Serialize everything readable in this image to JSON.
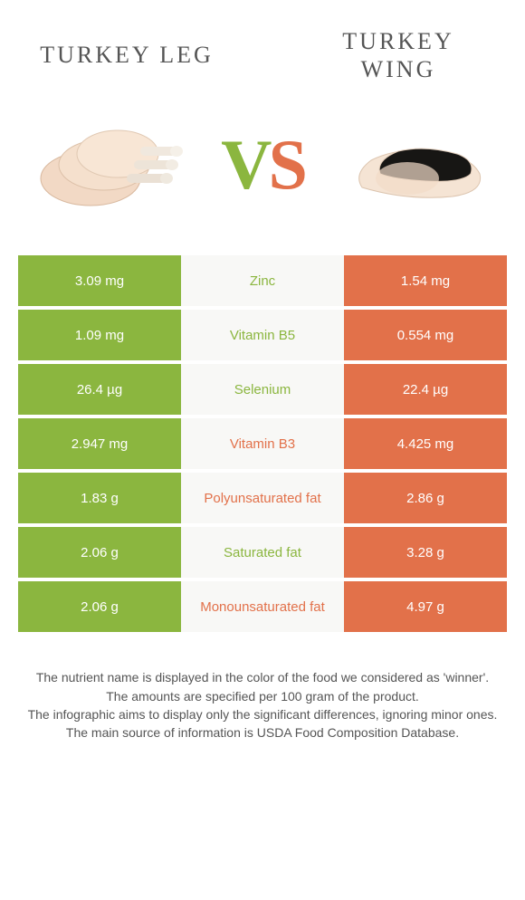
{
  "header": {
    "left_title": "TURKEY LEG",
    "right_title": "TURKEY WING",
    "vs_v": "V",
    "vs_s": "S"
  },
  "colors": {
    "left": "#8bb63f",
    "right": "#e2714a",
    "mid_bg": "#f8f8f6",
    "text": "#555555"
  },
  "table": {
    "rows": [
      {
        "left": "3.09 mg",
        "name": "Zinc",
        "right": "1.54 mg",
        "winner": "left"
      },
      {
        "left": "1.09 mg",
        "name": "Vitamin B5",
        "right": "0.554 mg",
        "winner": "left"
      },
      {
        "left": "26.4 µg",
        "name": "Selenium",
        "right": "22.4 µg",
        "winner": "left"
      },
      {
        "left": "2.947 mg",
        "name": "Vitamin B3",
        "right": "4.425 mg",
        "winner": "right"
      },
      {
        "left": "1.83 g",
        "name": "Polyunsaturated fat",
        "right": "2.86 g",
        "winner": "right"
      },
      {
        "left": "2.06 g",
        "name": "Saturated fat",
        "right": "3.28 g",
        "winner": "left"
      },
      {
        "left": "2.06 g",
        "name": "Monounsaturated fat",
        "right": "4.97 g",
        "winner": "right"
      }
    ]
  },
  "footer": {
    "line1": "The nutrient name is displayed in the color of the food we considered as 'winner'.",
    "line2": "The amounts are specified per 100 gram of the product.",
    "line3": "The infographic aims to display only the significant differences, ignoring minor ones.",
    "line4": "The main source of information is USDA Food Composition Database."
  }
}
